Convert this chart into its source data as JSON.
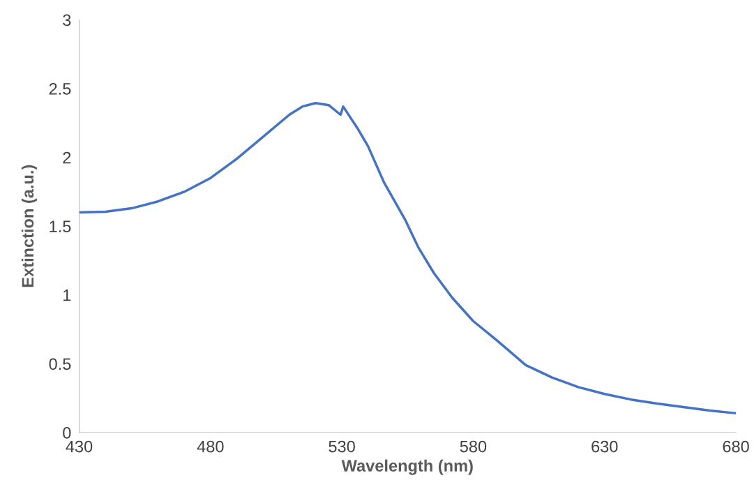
{
  "chart_data": {
    "type": "line",
    "xlabel": "Wavelength (nm)",
    "ylabel": "Extinction (a.u.)",
    "xlim": [
      430,
      680
    ],
    "xticks": [
      430,
      480,
      530,
      580,
      630,
      680
    ],
    "ylim": [
      0,
      3
    ],
    "yticks": [
      0,
      0.5,
      1,
      1.5,
      2,
      2.5,
      3
    ],
    "grid": false,
    "series": [
      {
        "color": "#4472c4",
        "x": [
          430,
          440,
          450,
          460,
          470,
          480,
          490,
          500,
          510,
          515,
          520,
          525,
          529.5,
          530.5,
          536,
          540,
          546,
          554,
          559,
          565,
          572,
          580,
          589,
          600,
          610,
          620,
          630,
          640,
          650,
          660,
          670,
          680
        ],
        "values": [
          1.6,
          1.605,
          1.63,
          1.68,
          1.75,
          1.85,
          1.99,
          2.15,
          2.31,
          2.37,
          2.395,
          2.38,
          2.31,
          2.37,
          2.21,
          2.08,
          1.82,
          1.55,
          1.35,
          1.16,
          0.98,
          0.81,
          0.67,
          0.49,
          0.4,
          0.33,
          0.28,
          0.24,
          0.21,
          0.185,
          0.16,
          0.14
        ]
      }
    ]
  }
}
